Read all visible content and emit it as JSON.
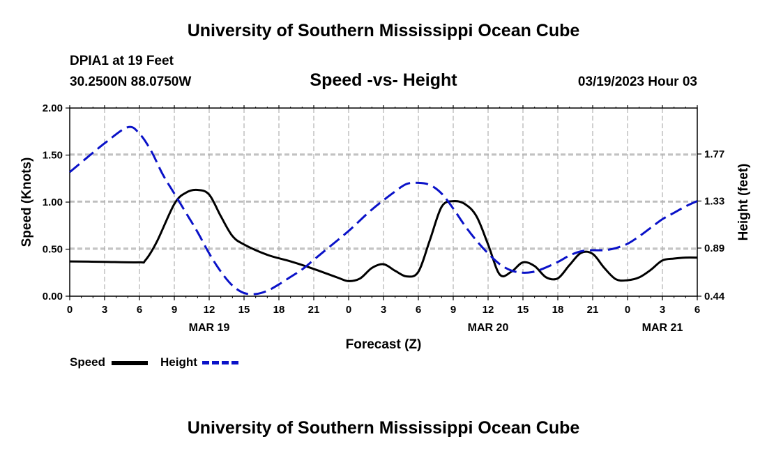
{
  "header": {
    "title": "University of Southern Mississippi Ocean Cube",
    "footer_title": "University of Southern Mississippi Ocean Cube",
    "station": "DPIA1 at 19 Feet",
    "coordinates": "30.2500N  88.0750W",
    "chart_title": "Speed -vs- Height",
    "datetime": "03/19/2023 Hour 03"
  },
  "legend": {
    "speed_label": "Speed",
    "height_label": "Height"
  },
  "colors": {
    "speed": "#000000",
    "height": "#0a12c8",
    "grid": "#b0b0b0"
  },
  "chart_data": {
    "type": "line",
    "xlabel": "Forecast (Z)",
    "ylabel": "Speed (Knots)",
    "y2label": "Height (feet)",
    "x_range": [
      0,
      54
    ],
    "x_tick_values": [
      0,
      3,
      6,
      9,
      12,
      15,
      18,
      21,
      24,
      27,
      30,
      33,
      36,
      39,
      42,
      45,
      48,
      51,
      54
    ],
    "x_tick_labels": [
      "0",
      "3",
      "6",
      "9",
      "12",
      "15",
      "18",
      "21",
      "0",
      "3",
      "6",
      "9",
      "12",
      "15",
      "18",
      "21",
      "0",
      "3",
      "6"
    ],
    "date_labels": [
      {
        "x": 12,
        "label": "MAR 19"
      },
      {
        "x": 36,
        "label": "MAR 20"
      },
      {
        "x": 51,
        "label": "MAR 21"
      }
    ],
    "ylim": [
      0,
      2
    ],
    "y_ticks": [
      "0.00",
      "0.50",
      "1.00",
      "1.50",
      "2.00"
    ],
    "y_tick_values": [
      0,
      0.5,
      1.0,
      1.5,
      2.0
    ],
    "y2lim": [
      0.44,
      2.2
    ],
    "y2_ticks": [
      "0.44",
      "0.89",
      "1.33",
      "1.77"
    ],
    "y2_tick_values": [
      0.44,
      0.89,
      1.33,
      1.77
    ],
    "series": [
      {
        "name": "Speed",
        "axis": "left",
        "x": [
          0,
          3,
          6,
          6.5,
          7.5,
          9,
          10,
          11,
          12,
          13,
          14,
          15,
          17,
          19,
          21,
          23,
          24,
          25,
          26,
          27,
          28,
          29,
          30,
          31,
          32,
          33,
          34,
          35,
          36,
          37,
          38,
          39,
          40,
          41,
          42,
          43,
          44,
          45,
          46,
          47,
          48,
          49,
          50,
          51,
          52,
          53,
          54
        ],
        "values": [
          0.37,
          0.365,
          0.36,
          0.38,
          0.58,
          0.98,
          1.1,
          1.13,
          1.08,
          0.85,
          0.64,
          0.55,
          0.44,
          0.37,
          0.29,
          0.2,
          0.16,
          0.19,
          0.3,
          0.34,
          0.27,
          0.21,
          0.26,
          0.6,
          0.95,
          1.01,
          0.98,
          0.85,
          0.55,
          0.23,
          0.26,
          0.36,
          0.32,
          0.2,
          0.19,
          0.33,
          0.46,
          0.45,
          0.3,
          0.18,
          0.17,
          0.2,
          0.28,
          0.38,
          0.4,
          0.41,
          0.41
        ]
      },
      {
        "name": "Height",
        "axis": "right",
        "x": [
          0,
          3,
          5,
          6,
          7,
          8,
          9,
          10,
          11,
          12,
          13,
          14,
          15,
          16,
          17,
          18,
          19,
          20,
          21,
          22,
          24,
          26,
          28,
          29,
          30,
          31,
          32,
          33,
          34,
          35,
          36,
          37,
          38,
          39,
          40,
          41,
          42,
          43,
          44,
          45,
          46,
          47,
          48,
          49,
          50,
          51,
          52,
          53,
          54
        ],
        "values": [
          1.6,
          1.87,
          2.02,
          1.96,
          1.8,
          1.58,
          1.4,
          1.22,
          1.04,
          0.84,
          0.67,
          0.54,
          0.47,
          0.46,
          0.49,
          0.55,
          0.62,
          0.69,
          0.78,
          0.87,
          1.05,
          1.25,
          1.42,
          1.49,
          1.5,
          1.48,
          1.4,
          1.26,
          1.1,
          0.96,
          0.84,
          0.74,
          0.68,
          0.66,
          0.67,
          0.71,
          0.76,
          0.82,
          0.86,
          0.87,
          0.87,
          0.89,
          0.93,
          1.0,
          1.08,
          1.16,
          1.22,
          1.28,
          1.33
        ]
      }
    ]
  }
}
